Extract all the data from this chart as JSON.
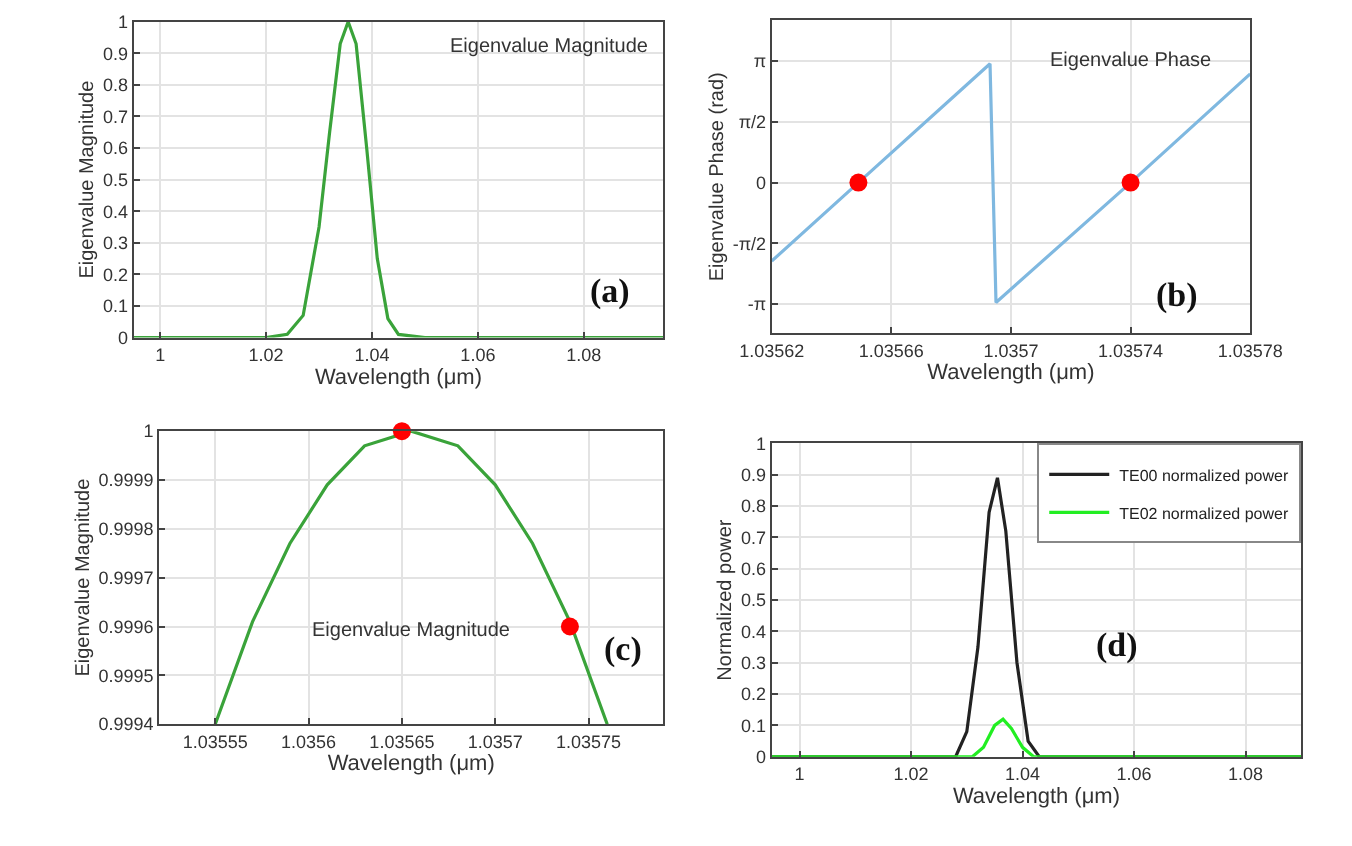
{
  "chart_data": [
    {
      "type": "line",
      "title": "Eigenvalue Magnitude",
      "xlabel": "Wavelength (μm)",
      "ylabel": "Eigenvalue Magnitude",
      "annotations": [
        "(a)"
      ],
      "xlim": [
        0.995,
        1.095
      ],
      "xticks": [
        1,
        1.02,
        1.04,
        1.06,
        1.08
      ],
      "ylim": [
        0,
        1
      ],
      "yticks": [
        0,
        0.1,
        0.2,
        0.3,
        0.4,
        0.5,
        0.6,
        0.7,
        0.8,
        0.9,
        1
      ],
      "grid": true,
      "legend": false,
      "series": [
        {
          "color": "#3aa33a",
          "x": [
            0.995,
            1.02,
            1.024,
            1.027,
            1.03,
            1.032,
            1.034,
            1.0355,
            1.037,
            1.039,
            1.041,
            1.043,
            1.045,
            1.05,
            1.095
          ],
          "values": [
            0,
            0,
            0.01,
            0.07,
            0.35,
            0.65,
            0.93,
            1,
            0.93,
            0.6,
            0.25,
            0.06,
            0.01,
            0,
            0
          ]
        }
      ]
    },
    {
      "type": "line",
      "title": "Eigenvalue Phase",
      "xlabel": "Wavelength (μm)",
      "ylabel": "Eigenvalue Phase (rad)",
      "annotations": [
        "(b)"
      ],
      "xlim": [
        1.03562,
        1.03578
      ],
      "xticks": [
        1.03562,
        1.03566,
        1.0357,
        1.03574,
        1.03578
      ],
      "ylim": [
        -3.9,
        4.2
      ],
      "yticks": [
        {
          "value": -3.1416,
          "label": "-π"
        },
        {
          "value": -1.5708,
          "label": "-π/2"
        },
        0,
        {
          "value": 1.5708,
          "label": "π/2"
        },
        {
          "value": 3.1416,
          "label": "π"
        }
      ],
      "grid": true,
      "legend": false,
      "series": [
        {
          "color": "#7fb8e0",
          "x": [
            1.03562,
            1.035649,
            1.035693,
            1.035695,
            1.03574,
            1.03578
          ],
          "values": [
            -2.03,
            0,
            3.07,
            -3.1,
            0,
            2.81
          ]
        },
        {
          "type": "scatter",
          "marker": "circle",
          "color": "#ff0000",
          "x": [
            1.035649,
            1.03574
          ],
          "values": [
            0,
            0
          ]
        }
      ]
    },
    {
      "type": "line",
      "title": "Eigenvalue Magnitude",
      "xlabel": "Wavelength (μm)",
      "ylabel": "Eigenvalue Magnitude",
      "annotations": [
        "(c)"
      ],
      "xlim": [
        1.03552,
        1.03579
      ],
      "xticks": [
        1.03555,
        1.0356,
        1.03565,
        1.0357,
        1.03575
      ],
      "ylim": [
        0.9994,
        1
      ],
      "yticks": [
        0.9994,
        0.9995,
        0.9996,
        0.9997,
        0.9998,
        0.9999,
        1
      ],
      "grid": true,
      "legend": false,
      "series": [
        {
          "color": "#3aa33a",
          "x": [
            1.03555,
            1.03557,
            1.03559,
            1.03561,
            1.03563,
            1.035655,
            1.03568,
            1.0357,
            1.03572,
            1.03574,
            1.03576
          ],
          "values": [
            0.9994,
            0.99961,
            0.99977,
            0.99989,
            0.99997,
            1,
            0.99997,
            0.99989,
            0.99977,
            0.99961,
            0.9994
          ]
        },
        {
          "type": "scatter",
          "marker": "circle",
          "color": "#ff0000",
          "x": [
            1.03565,
            1.03574
          ],
          "values": [
            1,
            0.9996
          ]
        }
      ]
    },
    {
      "type": "line",
      "xlabel": "Wavelength (μm)",
      "ylabel": "Normalized power",
      "annotations": [
        "(d)"
      ],
      "xlim": [
        0.995,
        1.09
      ],
      "xticks": [
        1,
        1.02,
        1.04,
        1.06,
        1.08
      ],
      "ylim": [
        0,
        1
      ],
      "yticks": [
        0,
        0.1,
        0.2,
        0.3,
        0.4,
        0.5,
        0.6,
        0.7,
        0.8,
        0.9,
        1
      ],
      "grid": true,
      "legend": "top right",
      "series": [
        {
          "name": "TE00 normalized power",
          "color": "#222222",
          "x": [
            0.995,
            1.028,
            1.03,
            1.032,
            1.034,
            1.0355,
            1.037,
            1.039,
            1.041,
            1.043,
            1.09
          ],
          "values": [
            0,
            0,
            0.08,
            0.35,
            0.78,
            0.89,
            0.72,
            0.3,
            0.05,
            0,
            0
          ]
        },
        {
          "name": "TE02 normalized power",
          "color": "#22ee22",
          "x": [
            0.995,
            1.031,
            1.033,
            1.035,
            1.0365,
            1.038,
            1.04,
            1.042,
            1.09
          ],
          "values": [
            0,
            0,
            0.03,
            0.1,
            0.12,
            0.09,
            0.03,
            0,
            0
          ]
        }
      ]
    }
  ]
}
